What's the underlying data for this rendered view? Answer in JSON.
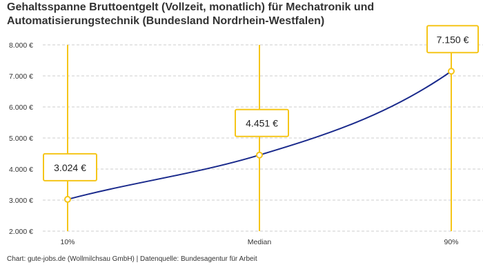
{
  "chart_data": {
    "type": "line",
    "title": "Gehaltsspanne Bruttoentgelt (Vollzeit, monatlich) für Mechatronik und Automatisierungstechnik (Bundesland Nordrhein-Westfalen)",
    "source": "Chart: gute-jobs.de (Wollmilchsau GmbH) | Datenquelle: Bundesagentur für Arbeit",
    "categories": [
      "10%",
      "Median",
      "90%"
    ],
    "values": [
      3024,
      4451,
      7150
    ],
    "data_labels": [
      "3.024 €",
      "4.451 €",
      "7.150 €"
    ],
    "yticks": [
      2000,
      3000,
      4000,
      5000,
      6000,
      7000,
      8000
    ],
    "ytick_labels": [
      "2.000 €",
      "3.000 €",
      "4.000 €",
      "5.000 €",
      "6.000 €",
      "7.000 €",
      "8.000 €"
    ],
    "ylim": [
      2000,
      8000
    ],
    "grid": "horizontal dashed",
    "colors": {
      "line": "#1a2a8c",
      "marker": "#f5c518",
      "grid": "#cccccc"
    }
  }
}
